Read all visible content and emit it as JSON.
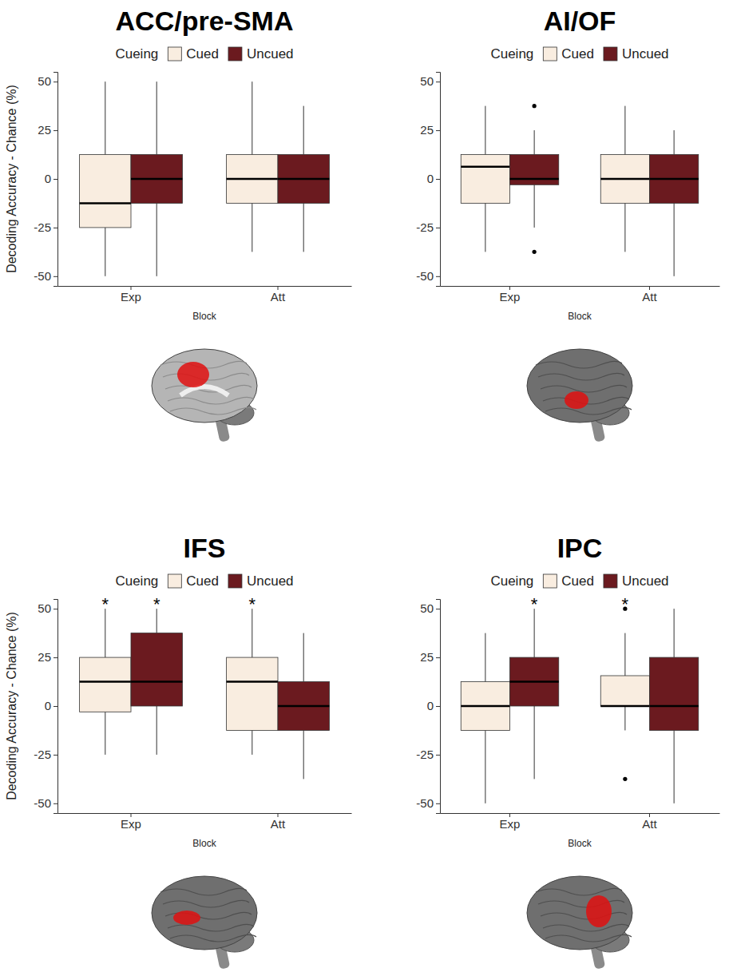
{
  "chart_data": [
    {
      "type": "box",
      "title": "ACC/pre-SMA",
      "x_label": "Block",
      "y_label": "Decoding Accuracy - Chance (%)",
      "legend_title": "Cueing",
      "legend": "top",
      "categories": [
        "Exp",
        "Att"
      ],
      "ylim": [
        -55,
        55
      ],
      "yticks": [
        -50,
        -25,
        0,
        25,
        50
      ],
      "series": [
        {
          "name": "Cued",
          "color": "#f9ede0",
          "whisker_low": [
            -50,
            -37.5
          ],
          "q1": [
            -25,
            -12.5
          ],
          "median": [
            -12.5,
            0
          ],
          "q3": [
            12.5,
            12.5
          ],
          "whisker_high": [
            50,
            50
          ],
          "outliers": [
            [],
            []
          ],
          "annotations": [
            null,
            null
          ]
        },
        {
          "name": "Uncued",
          "color": "#6b1a1f",
          "whisker_low": [
            -50,
            -37.5
          ],
          "q1": [
            -12.5,
            -12.5
          ],
          "median": [
            0,
            0
          ],
          "q3": [
            12.5,
            12.5
          ],
          "whisker_high": [
            50,
            37.5
          ],
          "outliers": [
            [],
            []
          ],
          "annotations": [
            null,
            null
          ]
        }
      ]
    },
    {
      "type": "box",
      "title": "AI/OF",
      "x_label": "Block",
      "legend_title": "Cueing",
      "legend": "top",
      "categories": [
        "Exp",
        "Att"
      ],
      "ylim": [
        -55,
        55
      ],
      "yticks": [
        -50,
        -25,
        0,
        25,
        50
      ],
      "series": [
        {
          "name": "Cued",
          "color": "#f9ede0",
          "whisker_low": [
            -37.5,
            -37.5
          ],
          "q1": [
            -12.5,
            -12.5
          ],
          "median": [
            6.25,
            0
          ],
          "q3": [
            12.5,
            12.5
          ],
          "whisker_high": [
            37.5,
            37.5
          ],
          "outliers": [
            [],
            []
          ],
          "annotations": [
            null,
            null
          ]
        },
        {
          "name": "Uncued",
          "color": "#6b1a1f",
          "whisker_low": [
            -25,
            -50
          ],
          "q1": [
            -3,
            -12.5
          ],
          "median": [
            0,
            0
          ],
          "q3": [
            12.5,
            12.5
          ],
          "whisker_high": [
            25,
            25
          ],
          "outliers": [
            [
              37.5,
              -37.5
            ],
            []
          ],
          "annotations": [
            null,
            null
          ]
        }
      ]
    },
    {
      "type": "box",
      "title": "IFS",
      "x_label": "Block",
      "y_label": "Decoding Accuracy - Chance (%)",
      "legend_title": "Cueing",
      "legend": "top",
      "categories": [
        "Exp",
        "Att"
      ],
      "ylim": [
        -55,
        55
      ],
      "yticks": [
        -50,
        -25,
        0,
        25,
        50
      ],
      "series": [
        {
          "name": "Cued",
          "color": "#f9ede0",
          "whisker_low": [
            -25,
            -25
          ],
          "q1": [
            -3,
            -12.5
          ],
          "median": [
            12.5,
            12.5
          ],
          "q3": [
            25,
            25
          ],
          "whisker_high": [
            50,
            50
          ],
          "outliers": [
            [],
            []
          ],
          "annotations": [
            "*",
            "*"
          ]
        },
        {
          "name": "Uncued",
          "color": "#6b1a1f",
          "whisker_low": [
            -25,
            -37.5
          ],
          "q1": [
            0,
            -12.5
          ],
          "median": [
            12.5,
            0
          ],
          "q3": [
            37.5,
            12.5
          ],
          "whisker_high": [
            50,
            37.5
          ],
          "outliers": [
            [],
            []
          ],
          "annotations": [
            "*",
            null
          ]
        }
      ]
    },
    {
      "type": "box",
      "title": "IPC",
      "x_label": "Block",
      "legend_title": "Cueing",
      "legend": "top",
      "categories": [
        "Exp",
        "Att"
      ],
      "ylim": [
        -55,
        55
      ],
      "yticks": [
        -50,
        -25,
        0,
        25,
        50
      ],
      "series": [
        {
          "name": "Cued",
          "color": "#f9ede0",
          "whisker_low": [
            -50,
            -12.5
          ],
          "q1": [
            -12.5,
            0
          ],
          "median": [
            0,
            0
          ],
          "q3": [
            12.5,
            15.6
          ],
          "whisker_high": [
            37.5,
            37.5
          ],
          "outliers": [
            [],
            [
              50,
              -37.5
            ]
          ],
          "annotations": [
            null,
            "*"
          ]
        },
        {
          "name": "Uncued",
          "color": "#6b1a1f",
          "whisker_low": [
            -37.5,
            -50
          ],
          "q1": [
            0,
            -12.5
          ],
          "median": [
            12.5,
            0
          ],
          "q3": [
            25,
            25
          ],
          "whisker_high": [
            50,
            50
          ],
          "outliers": [
            [],
            []
          ],
          "annotations": [
            "*",
            null
          ]
        }
      ]
    }
  ]
}
